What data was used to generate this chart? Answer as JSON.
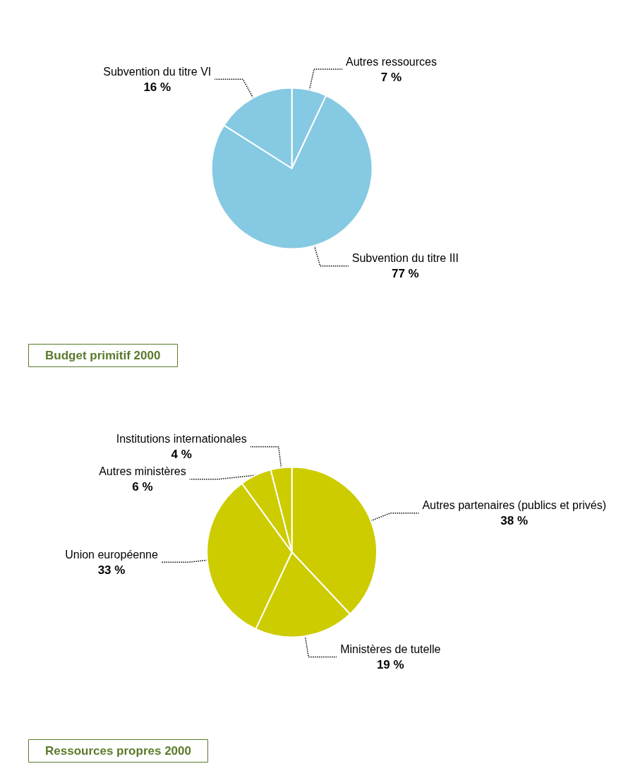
{
  "chart_data": [
    {
      "type": "pie",
      "title": "Budget primitif 2000",
      "categories": [
        "Autres ressources",
        "Subvention du titre III",
        "Subvention du titre VI"
      ],
      "values": [
        7,
        77,
        16
      ],
      "colors": [
        "#86c9e2",
        "#86c9e2",
        "#86c9e2"
      ],
      "value_labels": [
        "7 %",
        "77 %",
        "16 %"
      ]
    },
    {
      "type": "pie",
      "title": "Ressources propres 2000",
      "categories": [
        "Autres partenaires (publics et privés)",
        "Ministères de tutelle",
        "Union européenne",
        "Autres ministères",
        "Institutions internationales"
      ],
      "values": [
        38,
        19,
        33,
        6,
        4
      ],
      "colors": [
        "#cccc00",
        "#cccc00",
        "#cccc00",
        "#cccc00",
        "#cccc00"
      ],
      "value_labels": [
        "38 %",
        "19 %",
        "33 %",
        "6 %",
        "4 %"
      ]
    }
  ]
}
